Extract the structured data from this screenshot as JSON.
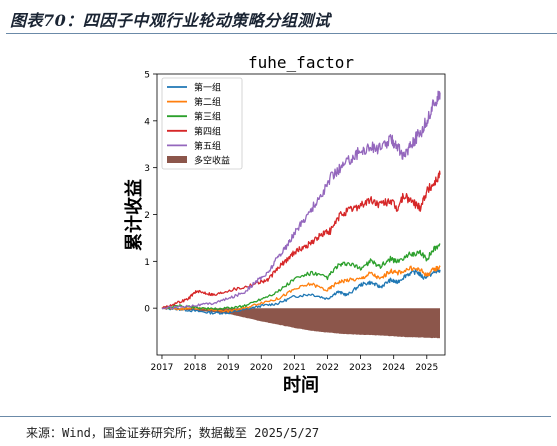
{
  "header": {
    "title": "图表70：四因子中观行业轮动策略分组测试"
  },
  "footer": {
    "source": "来源：Wind，国金证券研究所；数据截至 2025/5/27"
  },
  "colors": {
    "rule": "#6b8aa8"
  },
  "chart_data": {
    "type": "line",
    "title": "fuhe_factor",
    "xlabel": "时间",
    "ylabel": "累计收益",
    "xlim": [
      2016.85,
      2025.55
    ],
    "ylim": [
      -1.0,
      5.0
    ],
    "xticks": [
      "2017",
      "2018",
      "2019",
      "2020",
      "2021",
      "2022",
      "2023",
      "2024",
      "2025"
    ],
    "yticks": [
      "0",
      "1",
      "2",
      "3",
      "4",
      "5"
    ],
    "grid": false,
    "legend_position": "top-left",
    "series": [
      {
        "name": "第一组",
        "color": "#1f77b4",
        "kind": "line",
        "points": [
          [
            2017.0,
            0.0
          ],
          [
            2017.5,
            -0.02
          ],
          [
            2018.0,
            -0.06
          ],
          [
            2018.5,
            -0.1
          ],
          [
            2019.0,
            -0.1
          ],
          [
            2019.5,
            -0.03
          ],
          [
            2020.0,
            0.05
          ],
          [
            2020.5,
            0.1
          ],
          [
            2021.0,
            0.25
          ],
          [
            2021.5,
            0.3
          ],
          [
            2022.0,
            0.2
          ],
          [
            2022.3,
            0.35
          ],
          [
            2022.6,
            0.28
          ],
          [
            2023.0,
            0.5
          ],
          [
            2023.3,
            0.55
          ],
          [
            2023.6,
            0.45
          ],
          [
            2023.9,
            0.6
          ],
          [
            2024.1,
            0.55
          ],
          [
            2024.4,
            0.72
          ],
          [
            2024.7,
            0.78
          ],
          [
            2024.9,
            0.65
          ],
          [
            2025.2,
            0.75
          ],
          [
            2025.4,
            0.82
          ]
        ]
      },
      {
        "name": "第二组",
        "color": "#ff7f0e",
        "kind": "line",
        "points": [
          [
            2017.0,
            0.0
          ],
          [
            2017.5,
            -0.02
          ],
          [
            2018.0,
            0.0
          ],
          [
            2018.5,
            -0.03
          ],
          [
            2019.0,
            -0.06
          ],
          [
            2019.5,
            0.0
          ],
          [
            2020.0,
            0.12
          ],
          [
            2020.5,
            0.2
          ],
          [
            2021.0,
            0.4
          ],
          [
            2021.5,
            0.52
          ],
          [
            2022.0,
            0.38
          ],
          [
            2022.3,
            0.55
          ],
          [
            2022.6,
            0.6
          ],
          [
            2023.0,
            0.62
          ],
          [
            2023.3,
            0.75
          ],
          [
            2023.6,
            0.62
          ],
          [
            2023.9,
            0.8
          ],
          [
            2024.1,
            0.75
          ],
          [
            2024.5,
            0.85
          ],
          [
            2024.8,
            0.82
          ],
          [
            2025.0,
            0.7
          ],
          [
            2025.2,
            0.82
          ],
          [
            2025.4,
            0.88
          ]
        ]
      },
      {
        "name": "第三组",
        "color": "#2ca02c",
        "kind": "line",
        "points": [
          [
            2017.0,
            0.0
          ],
          [
            2017.5,
            0.05
          ],
          [
            2018.0,
            0.02
          ],
          [
            2018.5,
            -0.02
          ],
          [
            2019.0,
            0.0
          ],
          [
            2019.5,
            0.05
          ],
          [
            2020.0,
            0.2
          ],
          [
            2020.5,
            0.35
          ],
          [
            2021.0,
            0.62
          ],
          [
            2021.5,
            0.75
          ],
          [
            2022.0,
            0.65
          ],
          [
            2022.3,
            0.9
          ],
          [
            2022.6,
            0.95
          ],
          [
            2023.0,
            0.85
          ],
          [
            2023.3,
            1.0
          ],
          [
            2023.6,
            0.9
          ],
          [
            2023.9,
            1.05
          ],
          [
            2024.1,
            1.0
          ],
          [
            2024.5,
            1.15
          ],
          [
            2024.8,
            1.18
          ],
          [
            2025.0,
            1.05
          ],
          [
            2025.2,
            1.25
          ],
          [
            2025.4,
            1.38
          ]
        ]
      },
      {
        "name": "第四组",
        "color": "#d62728",
        "kind": "line",
        "points": [
          [
            2017.0,
            0.0
          ],
          [
            2017.4,
            0.1
          ],
          [
            2017.8,
            0.2
          ],
          [
            2018.0,
            0.35
          ],
          [
            2018.3,
            0.33
          ],
          [
            2018.6,
            0.28
          ],
          [
            2019.0,
            0.38
          ],
          [
            2019.5,
            0.45
          ],
          [
            2019.9,
            0.55
          ],
          [
            2020.2,
            0.6
          ],
          [
            2020.5,
            0.85
          ],
          [
            2020.8,
            1.05
          ],
          [
            2021.0,
            1.2
          ],
          [
            2021.3,
            1.3
          ],
          [
            2021.6,
            1.45
          ],
          [
            2021.9,
            1.6
          ],
          [
            2022.1,
            1.65
          ],
          [
            2022.4,
            2.0
          ],
          [
            2022.7,
            2.1
          ],
          [
            2023.0,
            2.2
          ],
          [
            2023.3,
            2.3
          ],
          [
            2023.6,
            2.2
          ],
          [
            2023.9,
            2.3
          ],
          [
            2024.1,
            2.1
          ],
          [
            2024.3,
            2.4
          ],
          [
            2024.6,
            2.25
          ],
          [
            2024.8,
            2.15
          ],
          [
            2025.0,
            2.5
          ],
          [
            2025.2,
            2.65
          ],
          [
            2025.4,
            2.85
          ]
        ]
      },
      {
        "name": "第五组",
        "color": "#9467bd",
        "kind": "line",
        "points": [
          [
            2017.0,
            0.0
          ],
          [
            2017.5,
            0.03
          ],
          [
            2018.0,
            0.06
          ],
          [
            2018.5,
            0.1
          ],
          [
            2019.0,
            0.2
          ],
          [
            2019.5,
            0.35
          ],
          [
            2019.9,
            0.6
          ],
          [
            2020.2,
            0.75
          ],
          [
            2020.5,
            1.1
          ],
          [
            2020.8,
            1.35
          ],
          [
            2021.0,
            1.6
          ],
          [
            2021.3,
            1.9
          ],
          [
            2021.6,
            2.2
          ],
          [
            2021.9,
            2.5
          ],
          [
            2022.1,
            2.8
          ],
          [
            2022.4,
            3.0
          ],
          [
            2022.7,
            3.2
          ],
          [
            2023.0,
            3.35
          ],
          [
            2023.3,
            3.45
          ],
          [
            2023.6,
            3.4
          ],
          [
            2023.9,
            3.6
          ],
          [
            2024.1,
            3.5
          ],
          [
            2024.3,
            3.2
          ],
          [
            2024.5,
            3.5
          ],
          [
            2024.7,
            3.65
          ],
          [
            2024.9,
            3.85
          ],
          [
            2025.1,
            4.15
          ],
          [
            2025.3,
            4.5
          ],
          [
            2025.4,
            4.6
          ]
        ]
      },
      {
        "name": "多空收益",
        "color": "#8c564b",
        "kind": "area",
        "points": [
          [
            2017.0,
            0.0
          ],
          [
            2017.5,
            -0.03
          ],
          [
            2018.0,
            -0.05
          ],
          [
            2018.5,
            -0.08
          ],
          [
            2019.0,
            -0.12
          ],
          [
            2019.5,
            -0.2
          ],
          [
            2020.0,
            -0.28
          ],
          [
            2020.5,
            -0.35
          ],
          [
            2021.0,
            -0.42
          ],
          [
            2021.5,
            -0.48
          ],
          [
            2022.0,
            -0.52
          ],
          [
            2022.5,
            -0.55
          ],
          [
            2023.0,
            -0.57
          ],
          [
            2023.5,
            -0.58
          ],
          [
            2024.0,
            -0.6
          ],
          [
            2024.5,
            -0.62
          ],
          [
            2025.0,
            -0.63
          ],
          [
            2025.4,
            -0.64
          ]
        ]
      }
    ]
  }
}
